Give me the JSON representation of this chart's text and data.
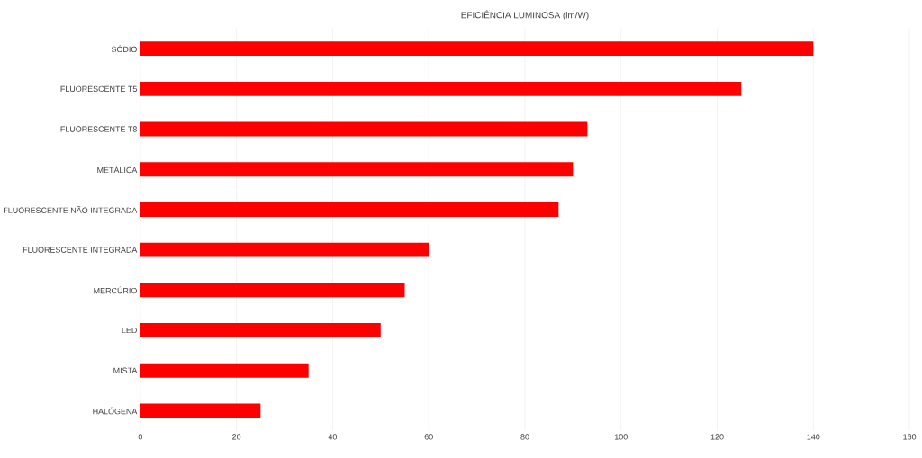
{
  "chart_data": {
    "type": "bar",
    "orientation": "horizontal",
    "title": "EFICIÊNCIA LUMINOSA (lm/W)",
    "categories": [
      "SÓDIO",
      "FLUORESCENTE T5",
      "FLUORESCENTE T8",
      "METÁLICA",
      "FLUORESCENTE NÃO INTEGRADA",
      "FLUORESCENTE INTEGRADA",
      "MERCÚRIO",
      "LED",
      "MISTA",
      "HALÓGENA"
    ],
    "values": [
      140,
      125,
      93,
      90,
      87,
      60,
      55,
      50,
      35,
      25
    ],
    "color": "#ff0000",
    "xlim": [
      0,
      160
    ],
    "xticks": [
      0,
      20,
      40,
      60,
      80,
      100,
      120,
      140,
      160
    ],
    "grid": "x"
  }
}
